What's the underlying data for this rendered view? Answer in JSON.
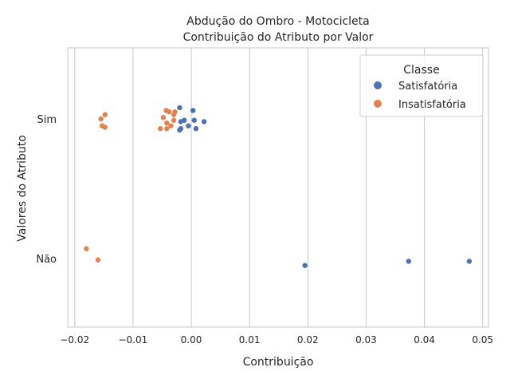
{
  "chart_data": {
    "type": "scatter",
    "title": "Abdução do Ombro - Motocicleta",
    "subtitle": "Contribuição do Atributo por Valor",
    "xlabel": "Contribuição",
    "ylabel": "Valores do Atributo",
    "xlim": [
      -0.0212,
      0.051
    ],
    "x_ticks": [
      -0.02,
      -0.01,
      0.0,
      0.01,
      0.02,
      0.03,
      0.04,
      0.05
    ],
    "x_tick_labels": [
      "−0.02",
      "−0.01",
      "0.00",
      "0.01",
      "0.02",
      "0.03",
      "0.04",
      "0.05"
    ],
    "categories": [
      "Sim",
      "Não"
    ],
    "grid": "vertical",
    "legend": {
      "title": "Classe",
      "position": "top-right"
    },
    "series": [
      {
        "name": "Satisfatória",
        "color": "#4c72b0",
        "points": [
          {
            "x": -0.002,
            "y": "Sim",
            "jitter": -0.08
          },
          {
            "x": 0.0003,
            "y": "Sim",
            "jitter": -0.06
          },
          {
            "x": 0.0022,
            "y": "Sim",
            "jitter": 0.02
          },
          {
            "x": 0.0005,
            "y": "Sim",
            "jitter": 0.01
          },
          {
            "x": -0.0018,
            "y": "Sim",
            "jitter": 0.02
          },
          {
            "x": -0.0012,
            "y": "Sim",
            "jitter": 0.01
          },
          {
            "x": -0.0005,
            "y": "Sim",
            "jitter": 0.05
          },
          {
            "x": 0.0008,
            "y": "Sim",
            "jitter": 0.07
          },
          {
            "x": -0.0018,
            "y": "Sim",
            "jitter": 0.07
          },
          {
            "x": -0.002,
            "y": "Sim",
            "jitter": 0.08
          },
          {
            "x": 0.0195,
            "y": "Não",
            "jitter": 0.05
          },
          {
            "x": 0.0373,
            "y": "Não",
            "jitter": 0.02
          },
          {
            "x": 0.0477,
            "y": "Não",
            "jitter": 0.02
          }
        ]
      },
      {
        "name": "Insatisfatória",
        "color": "#dd8452",
        "points": [
          {
            "x": -0.0148,
            "y": "Sim",
            "jitter": -0.03
          },
          {
            "x": -0.0155,
            "y": "Sim",
            "jitter": 0.0
          },
          {
            "x": -0.0153,
            "y": "Sim",
            "jitter": 0.05
          },
          {
            "x": -0.0148,
            "y": "Sim",
            "jitter": 0.06
          },
          {
            "x": -0.0043,
            "y": "Sim",
            "jitter": -0.06
          },
          {
            "x": -0.0038,
            "y": "Sim",
            "jitter": -0.05
          },
          {
            "x": -0.0028,
            "y": "Sim",
            "jitter": -0.05
          },
          {
            "x": -0.003,
            "y": "Sim",
            "jitter": -0.03
          },
          {
            "x": -0.0048,
            "y": "Sim",
            "jitter": -0.01
          },
          {
            "x": -0.003,
            "y": "Sim",
            "jitter": 0.01
          },
          {
            "x": -0.0042,
            "y": "Sim",
            "jitter": 0.03
          },
          {
            "x": -0.0035,
            "y": "Sim",
            "jitter": 0.05
          },
          {
            "x": -0.0053,
            "y": "Sim",
            "jitter": 0.07
          },
          {
            "x": -0.0042,
            "y": "Sim",
            "jitter": 0.07
          },
          {
            "x": -0.018,
            "y": "Não",
            "jitter": -0.07
          },
          {
            "x": -0.016,
            "y": "Não",
            "jitter": 0.01
          }
        ]
      }
    ]
  }
}
